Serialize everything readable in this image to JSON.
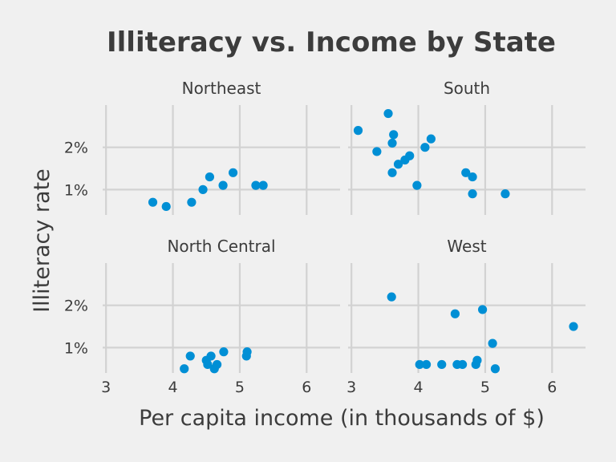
{
  "chart_data": {
    "type": "scatter",
    "title": "Illiteracy vs. Income by State",
    "xlabel": "Per capita income (in thousands of $)",
    "ylabel": "Illiteracy rate",
    "xlim": [
      2.95,
      6.5
    ],
    "ylim": [
      0.4,
      3.0
    ],
    "x_ticks": [
      3,
      4,
      5,
      6
    ],
    "x_tick_labels": [
      "3",
      "4",
      "5",
      "6"
    ],
    "y_ticks": [
      1,
      2
    ],
    "y_tick_labels": [
      "1%",
      "2%"
    ],
    "grid": true,
    "point_color": "#008fd5",
    "panels": [
      {
        "name": "Northeast",
        "points": [
          {
            "x": 3.7,
            "y": 0.7
          },
          {
            "x": 3.9,
            "y": 0.6
          },
          {
            "x": 4.28,
            "y": 0.7
          },
          {
            "x": 4.45,
            "y": 1.0
          },
          {
            "x": 4.55,
            "y": 1.3
          },
          {
            "x": 4.75,
            "y": 1.1
          },
          {
            "x": 4.9,
            "y": 1.4
          },
          {
            "x": 5.24,
            "y": 1.1
          },
          {
            "x": 5.35,
            "y": 1.1
          }
        ]
      },
      {
        "name": "South",
        "points": [
          {
            "x": 3.1,
            "y": 2.4
          },
          {
            "x": 3.38,
            "y": 1.9
          },
          {
            "x": 3.55,
            "y": 2.8
          },
          {
            "x": 3.61,
            "y": 2.1
          },
          {
            "x": 3.63,
            "y": 2.3
          },
          {
            "x": 3.61,
            "y": 1.4
          },
          {
            "x": 3.7,
            "y": 1.6
          },
          {
            "x": 3.8,
            "y": 1.7
          },
          {
            "x": 3.87,
            "y": 1.8
          },
          {
            "x": 3.98,
            "y": 1.1
          },
          {
            "x": 4.1,
            "y": 2.0
          },
          {
            "x": 4.19,
            "y": 2.2
          },
          {
            "x": 4.71,
            "y": 1.4
          },
          {
            "x": 4.81,
            "y": 1.3
          },
          {
            "x": 4.81,
            "y": 0.9
          },
          {
            "x": 5.3,
            "y": 0.9
          }
        ]
      },
      {
        "name": "North Central",
        "points": [
          {
            "x": 4.17,
            "y": 0.5
          },
          {
            "x": 4.26,
            "y": 0.8
          },
          {
            "x": 4.5,
            "y": 0.7
          },
          {
            "x": 4.52,
            "y": 0.6
          },
          {
            "x": 4.57,
            "y": 0.8
          },
          {
            "x": 4.62,
            "y": 0.5
          },
          {
            "x": 4.66,
            "y": 0.6
          },
          {
            "x": 4.76,
            "y": 0.9
          },
          {
            "x": 5.1,
            "y": 0.8
          },
          {
            "x": 5.11,
            "y": 0.9
          }
        ]
      },
      {
        "name": "West",
        "points": [
          {
            "x": 3.6,
            "y": 2.2
          },
          {
            "x": 4.02,
            "y": 0.6
          },
          {
            "x": 4.12,
            "y": 0.6
          },
          {
            "x": 4.35,
            "y": 0.6
          },
          {
            "x": 4.55,
            "y": 1.8
          },
          {
            "x": 4.58,
            "y": 0.6
          },
          {
            "x": 4.66,
            "y": 0.6
          },
          {
            "x": 4.86,
            "y": 0.6
          },
          {
            "x": 4.88,
            "y": 0.7
          },
          {
            "x": 4.96,
            "y": 1.9
          },
          {
            "x": 5.11,
            "y": 1.1
          },
          {
            "x": 5.15,
            "y": 0.5
          },
          {
            "x": 6.32,
            "y": 1.5
          }
        ]
      }
    ]
  }
}
